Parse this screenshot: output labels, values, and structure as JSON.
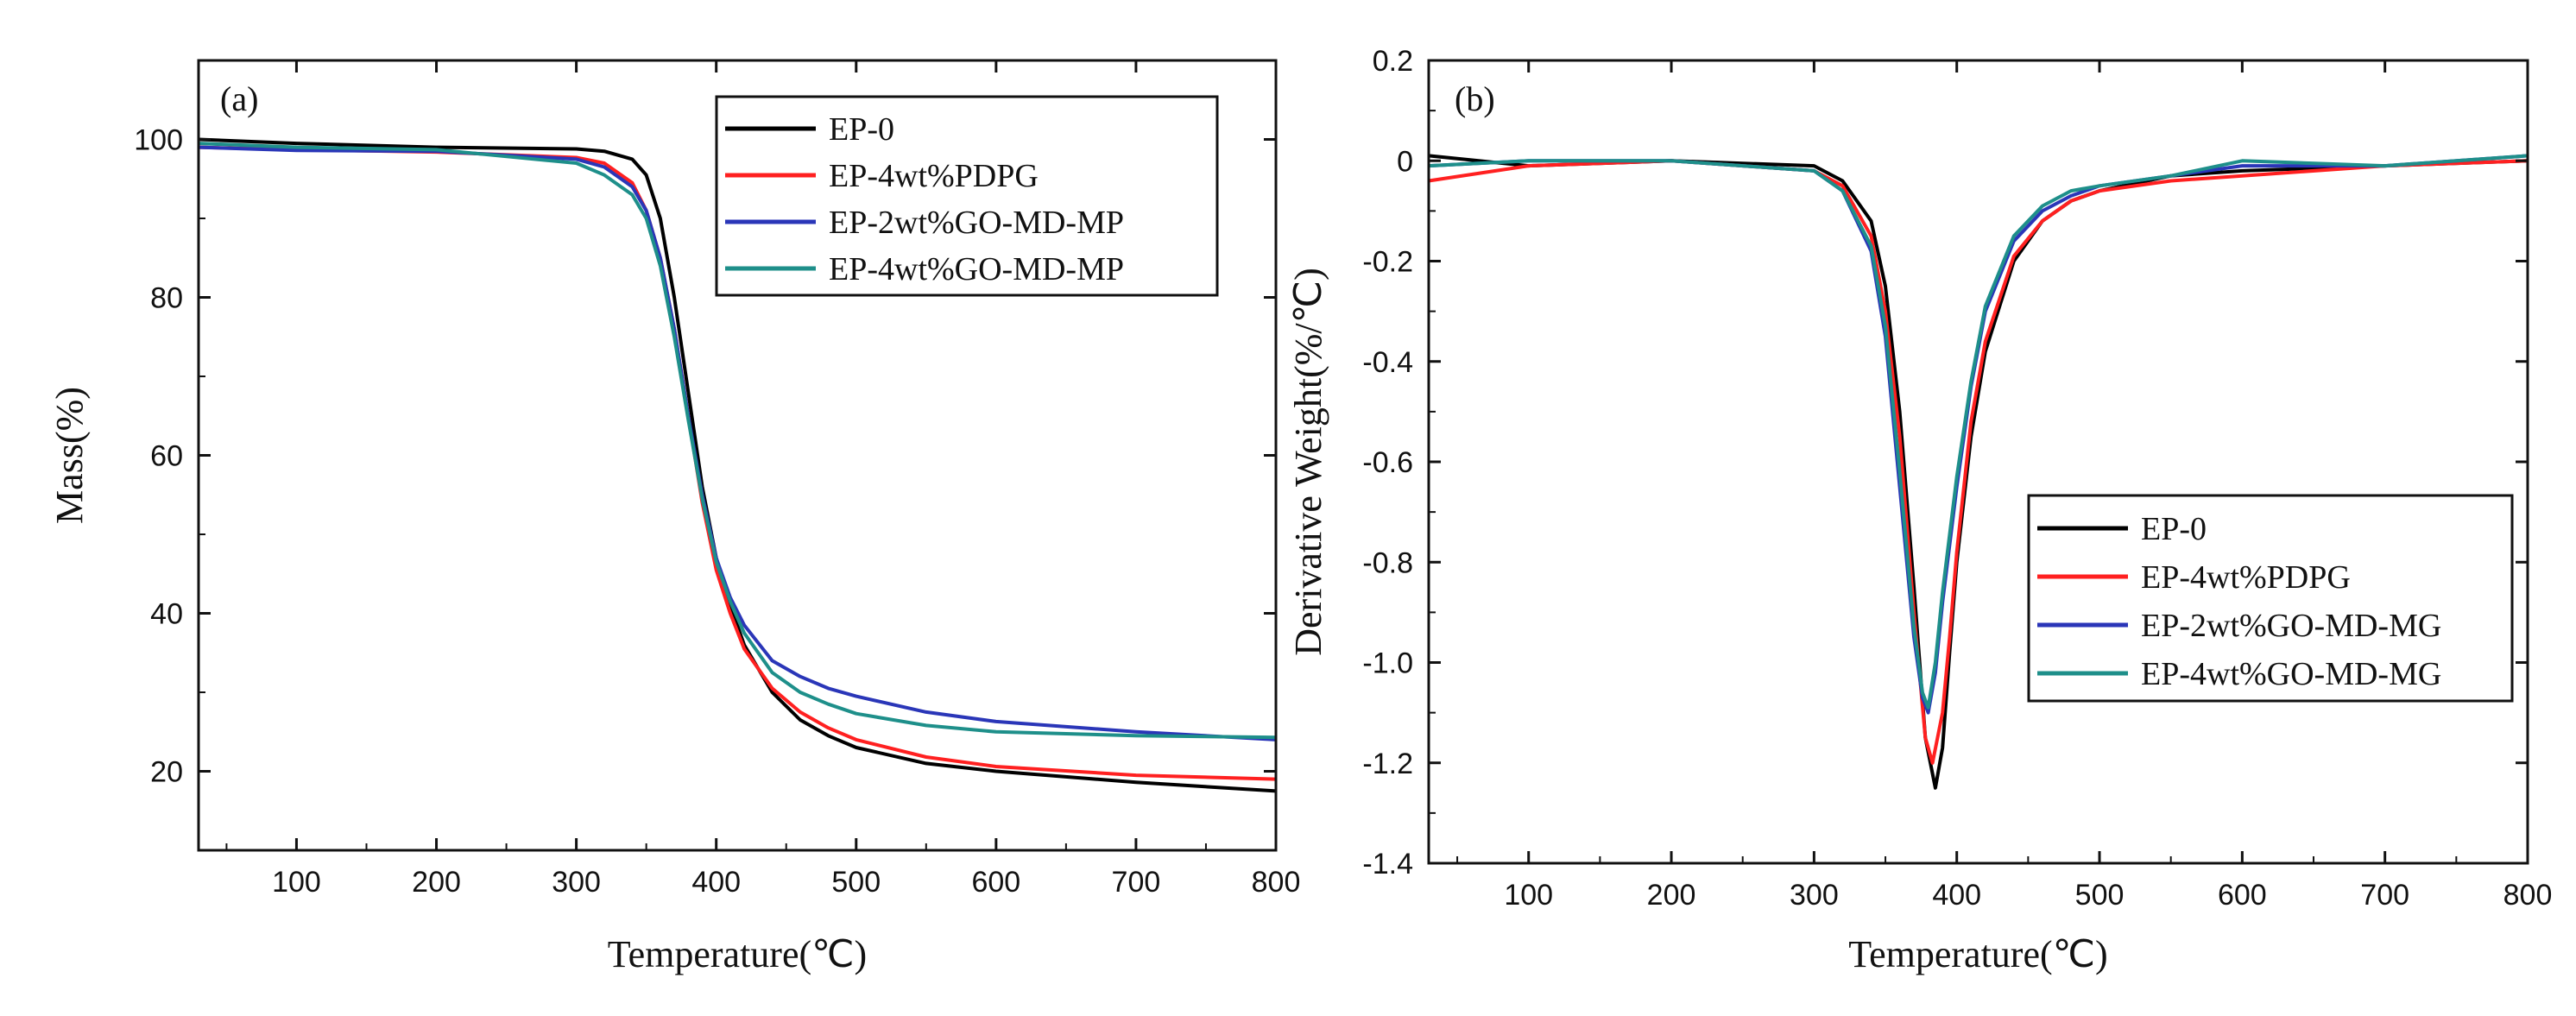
{
  "chart_data": [
    {
      "panel": "(a)",
      "type": "line",
      "xlabel": "Temperature(℃)",
      "ylabel": "Mass(%)",
      "xlim": [
        30,
        800
      ],
      "ylim": [
        10,
        110
      ],
      "xticks": [
        100,
        200,
        300,
        400,
        500,
        600,
        700,
        800
      ],
      "yticks": [
        20,
        40,
        60,
        80,
        100
      ],
      "legend": "top-right",
      "series": [
        {
          "name": "EP-0",
          "color": "#000000",
          "x": [
            30,
            100,
            200,
            300,
            320,
            340,
            350,
            360,
            370,
            380,
            390,
            400,
            410,
            420,
            440,
            460,
            480,
            500,
            550,
            600,
            700,
            800
          ],
          "y": [
            100,
            99.5,
            99,
            98.8,
            98.5,
            97.5,
            95.5,
            90,
            80,
            68,
            56,
            47,
            41,
            36,
            30,
            26.5,
            24.5,
            23,
            21,
            20,
            18.6,
            17.5
          ]
        },
        {
          "name": "EP-4wt%PDPG",
          "color": "#ff2020",
          "x": [
            30,
            100,
            200,
            300,
            320,
            340,
            350,
            360,
            370,
            380,
            390,
            400,
            410,
            420,
            440,
            460,
            480,
            500,
            550,
            600,
            700,
            800
          ],
          "y": [
            99,
            98.7,
            98.4,
            97.7,
            97,
            94.5,
            91,
            85,
            76,
            65,
            54,
            45.5,
            40,
            35.5,
            30.5,
            27.5,
            25.5,
            24,
            21.8,
            20.6,
            19.5,
            19
          ]
        },
        {
          "name": "EP-2wt%GO-MD-MP",
          "color": "#2a36b8",
          "x": [
            30,
            100,
            200,
            300,
            320,
            340,
            350,
            360,
            370,
            380,
            390,
            400,
            410,
            420,
            440,
            460,
            480,
            500,
            550,
            600,
            700,
            800
          ],
          "y": [
            99,
            98.6,
            98.5,
            97.5,
            96.5,
            94,
            91,
            85,
            76,
            65,
            55,
            47,
            42,
            38.5,
            34,
            32,
            30.5,
            29.5,
            27.5,
            26.3,
            25,
            24
          ]
        },
        {
          "name": "EP-4wt%GO-MD-MP",
          "color": "#1e8f8a",
          "x": [
            30,
            100,
            200,
            300,
            320,
            340,
            350,
            360,
            370,
            380,
            390,
            400,
            410,
            420,
            440,
            460,
            480,
            500,
            550,
            600,
            700,
            800
          ],
          "y": [
            99.5,
            99,
            98.7,
            97,
            95.5,
            93,
            90,
            84,
            75,
            64.5,
            54.5,
            46.5,
            41.5,
            37.5,
            32.5,
            30,
            28.5,
            27.3,
            25.8,
            25,
            24.5,
            24.3
          ]
        }
      ]
    },
    {
      "panel": "(b)",
      "type": "line",
      "xlabel": "Temperature(℃)",
      "ylabel": "Derivative Weight(%/℃)",
      "xlim": [
        30,
        800
      ],
      "ylim": [
        -1.4,
        0.2
      ],
      "xticks": [
        100,
        200,
        300,
        400,
        500,
        600,
        700,
        800
      ],
      "yticks": [
        0.2,
        0,
        -0.2,
        -0.4,
        -0.6,
        -0.8,
        -1.0,
        -1.2,
        -1.4
      ],
      "ytick_labels": [
        "0.2",
        "0",
        "-0.2",
        "-0.4",
        "-0.6",
        "-0.8",
        "-1.0",
        "-1.2",
        "-1.4"
      ],
      "legend": "bottom-right",
      "series": [
        {
          "name": "EP-0",
          "color": "#000000",
          "x": [
            30,
            100,
            200,
            300,
            320,
            340,
            350,
            360,
            370,
            378,
            385,
            390,
            395,
            400,
            410,
            420,
            440,
            460,
            480,
            500,
            550,
            600,
            700,
            800
          ],
          "y": [
            0.01,
            -0.01,
            0,
            -0.01,
            -0.04,
            -0.12,
            -0.25,
            -0.5,
            -0.85,
            -1.15,
            -1.25,
            -1.17,
            -0.98,
            -0.8,
            -0.55,
            -0.38,
            -0.2,
            -0.12,
            -0.08,
            -0.06,
            -0.03,
            -0.02,
            -0.01,
            0
          ]
        },
        {
          "name": "EP-4wt%PDPG",
          "color": "#ff2020",
          "x": [
            30,
            100,
            200,
            300,
            320,
            340,
            350,
            360,
            370,
            378,
            383,
            390,
            395,
            400,
            410,
            420,
            440,
            460,
            480,
            500,
            550,
            600,
            700,
            800
          ],
          "y": [
            -0.04,
            -0.01,
            0,
            -0.02,
            -0.05,
            -0.15,
            -0.3,
            -0.55,
            -0.9,
            -1.15,
            -1.2,
            -1.1,
            -0.95,
            -0.78,
            -0.52,
            -0.36,
            -0.19,
            -0.12,
            -0.08,
            -0.06,
            -0.04,
            -0.03,
            -0.01,
            0
          ]
        },
        {
          "name": "EP-2wt%GO-MD-MG",
          "color": "#2a36b8",
          "x": [
            30,
            100,
            200,
            300,
            320,
            340,
            350,
            360,
            370,
            376,
            380,
            385,
            390,
            400,
            410,
            420,
            440,
            460,
            480,
            500,
            550,
            600,
            700,
            800
          ],
          "y": [
            -0.01,
            0,
            0,
            -0.02,
            -0.06,
            -0.18,
            -0.35,
            -0.65,
            -0.95,
            -1.07,
            -1.1,
            -1.02,
            -0.88,
            -0.65,
            -0.45,
            -0.3,
            -0.16,
            -0.1,
            -0.07,
            -0.05,
            -0.03,
            -0.01,
            -0.01,
            0.01
          ]
        },
        {
          "name": "EP-4wt%GO-MD-MG",
          "color": "#1e8f8a",
          "x": [
            30,
            100,
            200,
            300,
            320,
            340,
            350,
            360,
            370,
            376,
            380,
            385,
            390,
            400,
            410,
            420,
            440,
            460,
            480,
            500,
            550,
            600,
            700,
            800
          ],
          "y": [
            -0.01,
            0,
            0,
            -0.02,
            -0.06,
            -0.17,
            -0.33,
            -0.62,
            -0.93,
            -1.06,
            -1.09,
            -1.0,
            -0.86,
            -0.63,
            -0.44,
            -0.29,
            -0.15,
            -0.09,
            -0.06,
            -0.05,
            -0.03,
            0,
            -0.01,
            0.01
          ]
        }
      ]
    }
  ]
}
